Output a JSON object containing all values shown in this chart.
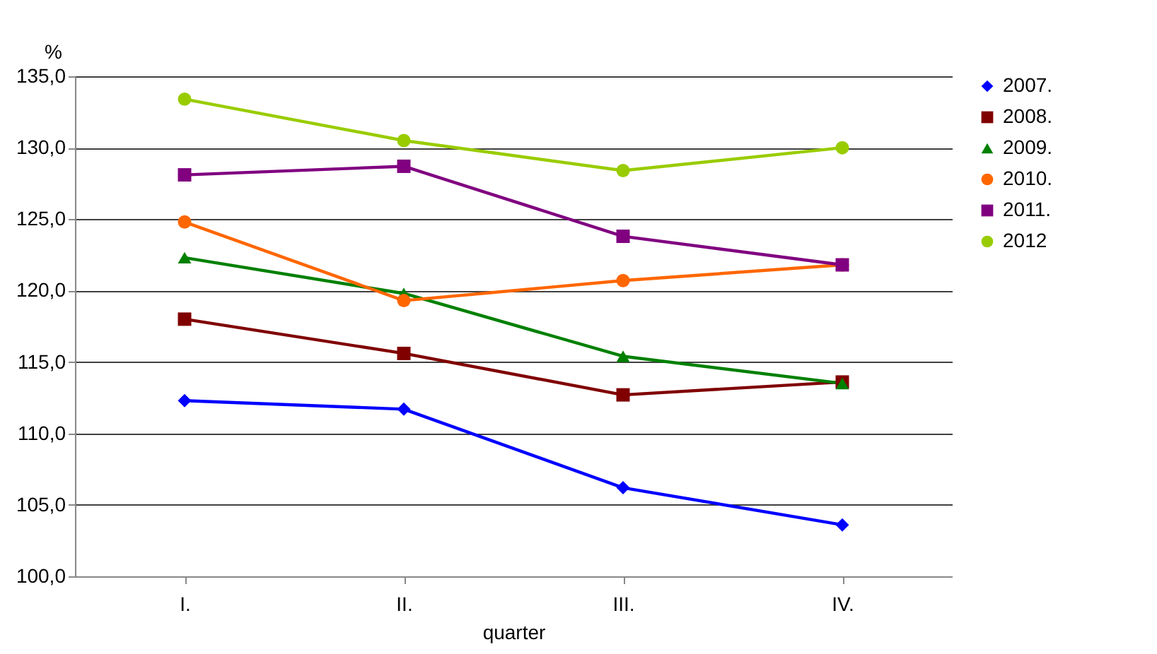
{
  "chart_data": {
    "type": "line",
    "xlabel": "quarter",
    "ylabel": "%",
    "categories": [
      "I.",
      "II.",
      "III.",
      "IV."
    ],
    "series": [
      {
        "name": "2007.",
        "color": "#0000ff",
        "marker": "diamond",
        "values": [
          112.3,
          111.7,
          106.2,
          103.6
        ]
      },
      {
        "name": "2008.",
        "color": "#800000",
        "marker": "square",
        "values": [
          118.0,
          115.6,
          112.7,
          113.6
        ]
      },
      {
        "name": "2009.",
        "color": "#008000",
        "marker": "triangle",
        "values": [
          122.3,
          119.8,
          115.4,
          113.5
        ]
      },
      {
        "name": "2010.",
        "color": "#ff6600",
        "marker": "circle",
        "values": [
          124.8,
          119.3,
          120.7,
          121.8
        ]
      },
      {
        "name": "2011.",
        "color": "#800080",
        "marker": "square",
        "values": [
          128.1,
          128.7,
          123.8,
          121.8
        ]
      },
      {
        "name": "2012",
        "color": "#99cc00",
        "marker": "circle",
        "values": [
          133.4,
          130.5,
          128.4,
          130.0
        ]
      }
    ],
    "ylim": [
      100,
      135
    ],
    "yticks": [
      {
        "value": 100,
        "label": "100,0"
      },
      {
        "value": 105,
        "label": "105,0"
      },
      {
        "value": 110,
        "label": "110,0"
      },
      {
        "value": 115,
        "label": "115,0"
      },
      {
        "value": 120,
        "label": "120,0"
      },
      {
        "value": 125,
        "label": "125,0"
      },
      {
        "value": 130,
        "label": "130,0"
      },
      {
        "value": 135,
        "label": "135,0"
      }
    ],
    "grid": "y",
    "legend": "right",
    "line_style": "solid"
  }
}
